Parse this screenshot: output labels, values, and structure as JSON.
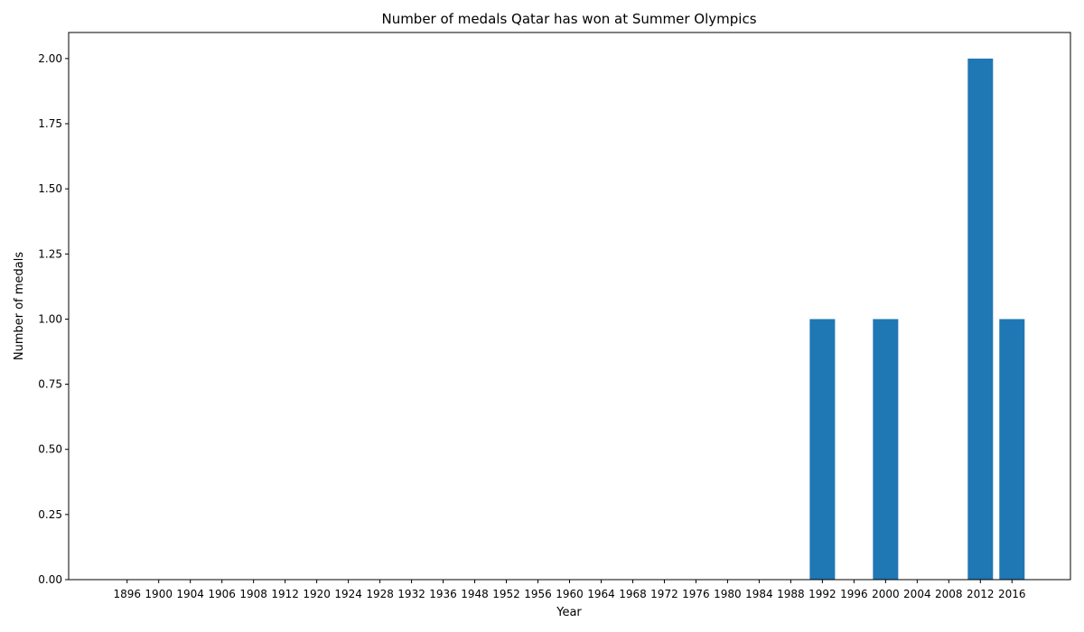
{
  "chart_data": {
    "type": "bar",
    "title": "Number of medals Qatar has won at Summer Olympics",
    "xlabel": "Year",
    "ylabel": "Number of medals",
    "categories": [
      "1896",
      "1900",
      "1904",
      "1906",
      "1908",
      "1912",
      "1920",
      "1924",
      "1928",
      "1932",
      "1936",
      "1948",
      "1952",
      "1956",
      "1960",
      "1964",
      "1968",
      "1972",
      "1976",
      "1980",
      "1984",
      "1988",
      "1992",
      "1996",
      "2000",
      "2004",
      "2008",
      "2012",
      "2016"
    ],
    "values": [
      0,
      0,
      0,
      0,
      0,
      0,
      0,
      0,
      0,
      0,
      0,
      0,
      0,
      0,
      0,
      0,
      0,
      0,
      0,
      0,
      0,
      0,
      1,
      0,
      1,
      0,
      0,
      2,
      1
    ],
    "ylim": [
      0,
      2.1
    ],
    "yticks": [
      0.0,
      0.25,
      0.5,
      0.75,
      1.0,
      1.25,
      1.5,
      1.75,
      2.0
    ],
    "ytick_labels": [
      "0.00",
      "0.25",
      "0.50",
      "0.75",
      "1.00",
      "1.25",
      "1.50",
      "1.75",
      "2.00"
    ],
    "bar_color": "#1f77b4",
    "grid": false,
    "legend": "none"
  }
}
